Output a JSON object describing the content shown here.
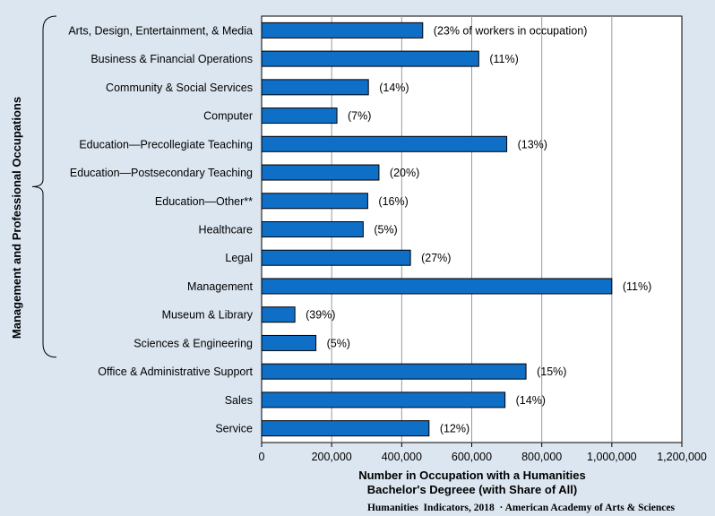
{
  "chart_data": {
    "type": "bar",
    "orientation": "horizontal",
    "categories": [
      "Arts, Design, Entertainment, & Media",
      "Business & Financial Operations",
      "Community & Social Services",
      "Computer",
      "Education—Precollegiate  Teaching",
      "Education—Postsecondary  Teaching",
      "Education—Other**",
      "Healthcare",
      "Legal",
      "Management",
      "Museum & Library",
      "Sciences & Engineering",
      "Office & Administrative Support",
      "Sales",
      "Service"
    ],
    "values": [
      460000,
      620000,
      305000,
      215000,
      700000,
      335000,
      303000,
      290000,
      425000,
      1000000,
      95000,
      155000,
      755000,
      695000,
      478000
    ],
    "data_labels": [
      "(23% of workers in occupation)",
      "(11%)",
      "(14%)",
      "(7%)",
      "(13%)",
      "(20%)",
      "(16%)",
      "(5%)",
      "(27%)",
      "(11%)",
      "(39%)",
      "(5%)",
      "(15%)",
      "(14%)",
      "(12%)"
    ],
    "xlabel": [
      "Number in Occupation with a Humanities",
      "Bachelor's Degreee (with Share of All)"
    ],
    "xlim": [
      0,
      1200000
    ],
    "xticks": [
      0,
      200000,
      400000,
      600000,
      800000,
      1000000,
      1200000
    ],
    "xtick_labels": [
      "0",
      "200,000",
      "400,000",
      "600,000",
      "800,000",
      "1,000,000",
      "1,200,000"
    ],
    "grid": "vertical",
    "group_label": "Management and Professional Occupations",
    "group_range": [
      0,
      11
    ],
    "bar_color": "#0f6fc6",
    "bar_edge_color": "#000000",
    "plot_background": "#ffffff",
    "page_background": "#dce6f0",
    "gridline_color": "#9a9a9a"
  },
  "footer": {
    "credit": "Humanities  Indicators, 2018  · American Academy of Arts & Sciences"
  }
}
